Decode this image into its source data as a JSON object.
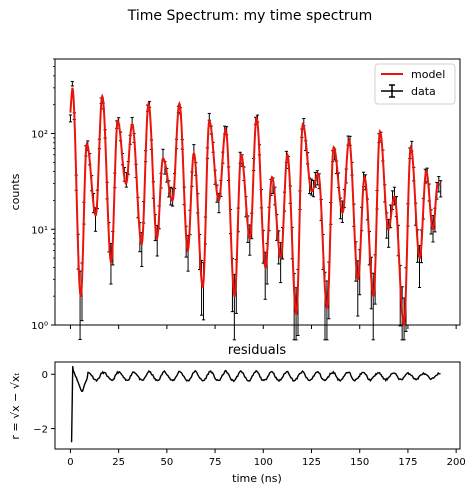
{
  "figure": {
    "title": "Time Spectrum: my time spectrum"
  },
  "chart_data": [
    {
      "type": "line",
      "title": "",
      "xlabel": "",
      "ylabel": "counts",
      "yscale": "log",
      "ylim": [
        1,
        600
      ],
      "xlim": [
        -8,
        202
      ],
      "yticks": [
        1,
        10,
        100
      ],
      "ytick_labels": [
        "10⁰",
        "10¹",
        "10²"
      ],
      "legend": {
        "placement": "top-right",
        "entries": [
          {
            "label": "model",
            "color": "#e8150d"
          },
          {
            "label": "data",
            "color": "#000000"
          }
        ]
      },
      "series": [
        {
          "name": "model",
          "color": "#e8150d"
        },
        {
          "name": "data",
          "color": "#000000",
          "errorbars": true
        }
      ],
      "peaks": [
        {
          "t": 1.0,
          "peak": 300,
          "min": 2.0
        },
        {
          "t": 8.5,
          "peak": 78,
          "min": 14
        },
        {
          "t": 16.5,
          "peak": 245,
          "min": 4.5
        },
        {
          "t": 24.5,
          "peak": 135,
          "min": 30
        },
        {
          "t": 32.0,
          "peak": 125,
          "min": 7
        },
        {
          "t": 40.5,
          "peak": 205,
          "min": 8
        },
        {
          "t": 48.0,
          "peak": 55,
          "min": 20
        },
        {
          "t": 56.5,
          "peak": 205,
          "min": 6
        },
        {
          "t": 64.0,
          "peak": 62,
          "min": 2.5
        },
        {
          "t": 72.0,
          "peak": 135,
          "min": 20
        },
        {
          "t": 80.5,
          "peak": 110,
          "min": 2.0
        },
        {
          "t": 88.5,
          "peak": 60,
          "min": 8
        },
        {
          "t": 96.5,
          "peak": 145,
          "min": 4
        },
        {
          "t": 104.5,
          "peak": 35,
          "min": 5
        },
        {
          "t": 112.5,
          "peak": 60,
          "min": 1.3
        },
        {
          "t": 120.5,
          "peak": 125,
          "min": 25
        },
        {
          "t": 128.5,
          "peak": 38,
          "min": 1.5
        },
        {
          "t": 136.5,
          "peak": 72,
          "min": 15
        },
        {
          "t": 144.5,
          "peak": 85,
          "min": 3
        },
        {
          "t": 152.5,
          "peak": 35,
          "min": 2
        },
        {
          "t": 160.5,
          "peak": 105,
          "min": 10
        },
        {
          "t": 168.0,
          "peak": 22,
          "min": 1.0
        },
        {
          "t": 176.5,
          "peak": 72,
          "min": 5
        },
        {
          "t": 184.5,
          "peak": 40,
          "min": 10
        },
        {
          "t": 190.5,
          "peak": 30,
          "min": 15
        }
      ]
    },
    {
      "type": "line",
      "title": "residuals",
      "xlabel": "time (ns)",
      "ylabel": "r = √x − √xₜ",
      "xlim": [
        -8,
        202
      ],
      "ylim": [
        -2.75,
        0.45
      ],
      "xticks": [
        0,
        25,
        50,
        75,
        100,
        125,
        150,
        175,
        200
      ],
      "xtick_labels": [
        "0",
        "25",
        "50",
        "75",
        "100",
        "125",
        "150",
        "175",
        "200"
      ],
      "yticks": [
        0,
        -2
      ],
      "ytick_labels": [
        "0",
        "−2"
      ],
      "series": [
        {
          "name": "residuals",
          "color": "#000000",
          "start_value": -2.5,
          "baseline": 0.0,
          "dip": -0.3
        }
      ]
    }
  ]
}
